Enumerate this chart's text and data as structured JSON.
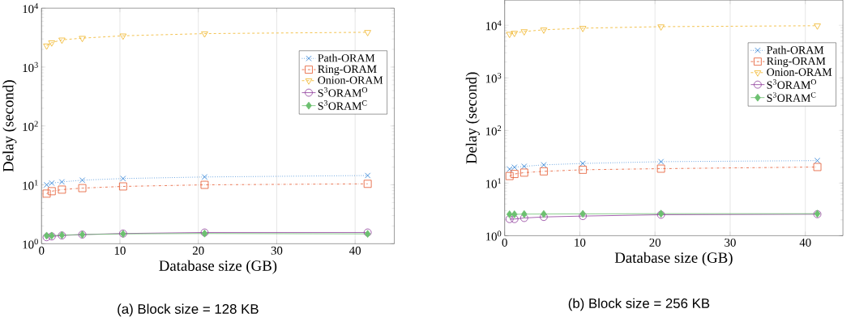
{
  "chart_data": [
    {
      "type": "line",
      "title": "(a) Block size = 128 KB",
      "xlabel": "Database size (GB)",
      "ylabel": "Delay (second)",
      "log": "y",
      "grid": "x",
      "legend": "right",
      "x": [
        0.65,
        1.3,
        2.6,
        5.2,
        10.4,
        20.8,
        41.6
      ],
      "xlim": [
        0,
        45
      ],
      "xticks": [
        0,
        10,
        20,
        30,
        40
      ],
      "ylim": [
        1,
        10000
      ],
      "yticks": [
        {
          "value": 1,
          "label": "10$^{0}$"
        },
        {
          "value": 10,
          "label": "10$^{1}$"
        },
        {
          "value": 100,
          "label": "10$^{2}$"
        },
        {
          "value": 1000,
          "label": "10$^{3}$"
        },
        {
          "value": 10000,
          "label": "10$^{4}$"
        }
      ],
      "series": [
        {
          "name": "Path-ORAM",
          "color": "#1f78d1",
          "marker": "cross",
          "line_style": "dotted",
          "values": [
            10,
            10.7,
            11.2,
            12,
            12.8,
            13.6,
            14.4
          ]
        },
        {
          "name": "Ring-ORAM",
          "color": "#e4572e",
          "marker": "square",
          "line_style": "dashdot",
          "values": [
            7.1,
            7.8,
            8.3,
            8.8,
            9.4,
            10,
            10.4
          ]
        },
        {
          "name": "Onion-ORAM",
          "color": "#f0b323",
          "marker": "triangle_down",
          "line_style": "dashed",
          "values": [
            2300,
            2600,
            2900,
            3100,
            3400,
            3700,
            3900
          ]
        },
        {
          "name": "S$^{3}$ORAM$^{O}$",
          "color": "#8e3a9a",
          "marker": "circle",
          "line_style": "solid",
          "values": [
            1.29,
            1.33,
            1.38,
            1.43,
            1.49,
            1.55,
            1.55
          ]
        },
        {
          "name": "S$^{3}$ORAM$^{C}$",
          "color": "#6cc070",
          "marker": "diamond",
          "line_style": "solid",
          "values": [
            1.37,
            1.37,
            1.4,
            1.43,
            1.47,
            1.49,
            1.47
          ]
        }
      ]
    },
    {
      "type": "line",
      "title": "(b) Block size = 256 KB",
      "xlabel": "Database size (GB)",
      "ylabel": "Delay (second)",
      "log": "y",
      "grid": "x",
      "legend": "right",
      "x": [
        0.65,
        1.3,
        2.6,
        5.2,
        10.4,
        20.8,
        41.6
      ],
      "xlim": [
        0,
        45
      ],
      "xticks": [
        0,
        10,
        20,
        30,
        40
      ],
      "ylim": [
        1,
        30000
      ],
      "yticks": [
        {
          "value": 1,
          "label": "10$^{0}$"
        },
        {
          "value": 10,
          "label": "10$^{1}$"
        },
        {
          "value": 100,
          "label": "10$^{2}$"
        },
        {
          "value": 1000,
          "label": "10$^{3}$"
        },
        {
          "value": 10000,
          "label": "10$^{4}$"
        }
      ],
      "series": [
        {
          "name": "Path-ORAM",
          "color": "#1f78d1",
          "marker": "cross",
          "line_style": "dotted",
          "values": [
            18.4,
            20,
            20.8,
            22.2,
            23.6,
            25.5,
            26.7
          ]
        },
        {
          "name": "Ring-ORAM",
          "color": "#e4572e",
          "marker": "square",
          "line_style": "dashdot",
          "values": [
            13.6,
            14.9,
            15.8,
            16.7,
            17.9,
            18.8,
            20.2
          ]
        },
        {
          "name": "Onion-ORAM",
          "color": "#f0b323",
          "marker": "triangle_down",
          "line_style": "dashed",
          "values": [
            6800,
            7100,
            7600,
            8200,
            8800,
            9400,
            9800
          ]
        },
        {
          "name": "S$^{3}$ORAM$^{O}$",
          "color": "#8e3a9a",
          "marker": "circle",
          "line_style": "solid",
          "values": [
            2.07,
            2.07,
            2.17,
            2.27,
            2.36,
            2.5,
            2.56
          ]
        },
        {
          "name": "S$^{3}$ORAM$^{C}$",
          "color": "#6cc070",
          "marker": "diamond",
          "line_style": "solid",
          "values": [
            2.55,
            2.55,
            2.57,
            2.58,
            2.6,
            2.62,
            2.62
          ]
        }
      ]
    }
  ]
}
